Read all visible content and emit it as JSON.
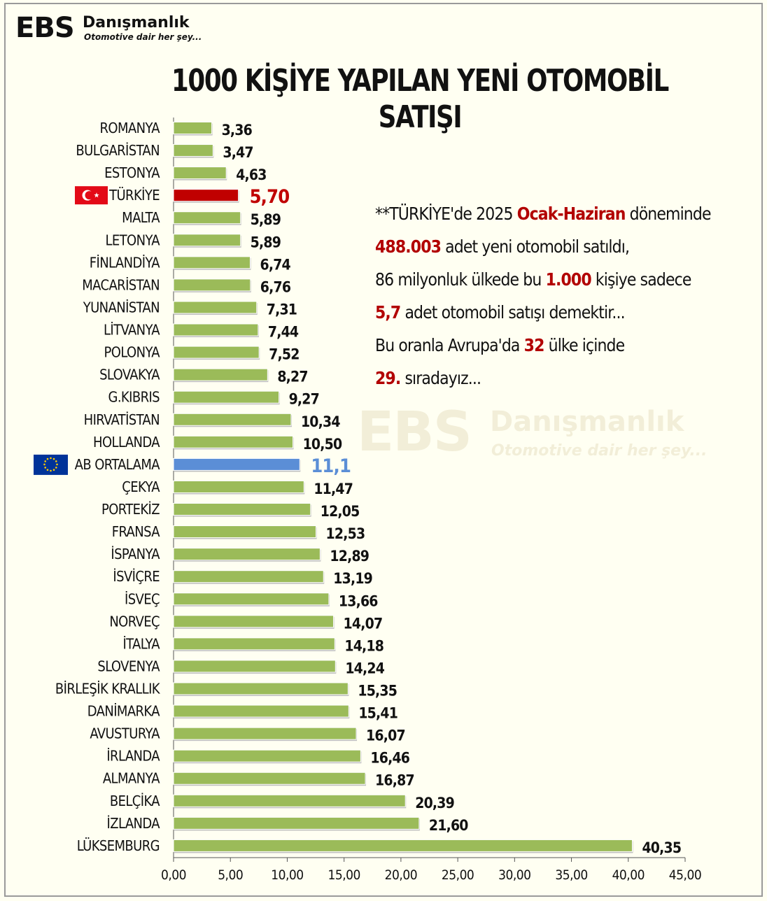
{
  "logo": {
    "ebs": "EBS",
    "name": "Danışmanlık",
    "slogan": "Otomotive dair her şey..."
  },
  "title": "1000 KİŞİYE YAPILAN YENİ OTOMOBİL SATIŞI",
  "info": {
    "l1a": "**TÜRKİYE'de 2025 ",
    "l1b": "Ocak-Haziran",
    "l1c": " döneminde",
    "l2a": "488.003",
    "l2b": " adet yeni otomobil satıldı,",
    "l3a": "86 milyonluk ülkede bu ",
    "l3b": "1.000",
    "l3c": " kişiye sadece",
    "l4a": "5,7",
    "l4b": " adet otomobil satışı demektir...",
    "l5a": "Bu oranla Avrupa'da ",
    "l5b": "32",
    "l5c": " ülke içinde",
    "l6a": "29.",
    "l6b": " sıradayız..."
  },
  "colors": {
    "bar": "#9bbb59",
    "turkey": "#c00000",
    "eu": "#5b8ed6",
    "eu_flag": "#003399",
    "tr_flag": "#e30a17",
    "red_text": "#b20000"
  },
  "chart_data": {
    "type": "bar",
    "orientation": "horizontal",
    "categories": [
      "ROMANYA",
      "BULGARİSTAN",
      "ESTONYA",
      "TÜRKİYE",
      "MALTA",
      "LETONYA",
      "FİNLANDİYA",
      "MACARİSTAN",
      "YUNANİSTAN",
      "LİTVANYA",
      "POLONYA",
      "SLOVAKYA",
      "G.KIBRIS",
      "HIRVATİSTAN",
      "HOLLANDA",
      "AB ORTALAMA",
      "ÇEKYA",
      "PORTEKİZ",
      "FRANSA",
      "İSPANYA",
      "İSVİÇRE",
      "İSVEÇ",
      "NORVEÇ",
      "İTALYA",
      "SLOVENYA",
      "BİRLEŞİK KRALLIK",
      "DANİMARKA",
      "AVUSTURYA",
      "İRLANDA",
      "ALMANYA",
      "BELÇİKA",
      "İZLANDA",
      "LÜKSEMBURG"
    ],
    "values": [
      3.36,
      3.47,
      4.63,
      5.7,
      5.89,
      5.89,
      6.74,
      6.76,
      7.31,
      7.44,
      7.52,
      8.27,
      9.27,
      10.34,
      10.5,
      11.1,
      11.47,
      12.05,
      12.53,
      12.89,
      13.19,
      13.66,
      14.07,
      14.18,
      14.24,
      15.35,
      15.41,
      16.07,
      16.46,
      16.87,
      20.39,
      21.6,
      40.35
    ],
    "labels": [
      "3,36",
      "3,47",
      "4,63",
      "5,70",
      "5,89",
      "5,89",
      "6,74",
      "6,76",
      "7,31",
      "7,44",
      "7,52",
      "8,27",
      "9,27",
      "10,34",
      "10,50",
      "11,1",
      "11,47",
      "12,05",
      "12,53",
      "12,89",
      "13,19",
      "13,66",
      "14,07",
      "14,18",
      "14,24",
      "15,35",
      "15,41",
      "16,07",
      "16,46",
      "16,87",
      "20,39",
      "21,60",
      "40,35"
    ],
    "highlight": {
      "TÜRKİYE": "turkey",
      "AB ORTALAMA": "eu"
    },
    "xlim": [
      0,
      45
    ],
    "xticks": [
      0,
      5,
      10,
      15,
      20,
      25,
      30,
      35,
      40,
      45
    ],
    "xtick_labels": [
      "0,00",
      "5,00",
      "10,00",
      "15,00",
      "20,00",
      "25,00",
      "30,00",
      "35,00",
      "40,00",
      "45,00"
    ],
    "grid": false
  }
}
